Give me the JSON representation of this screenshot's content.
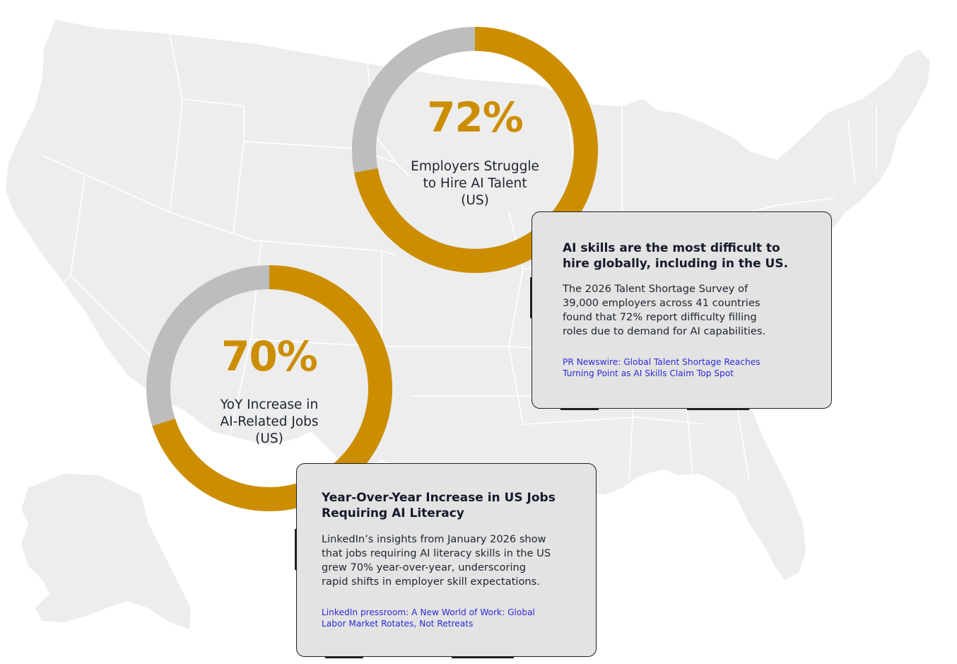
{
  "colors": {
    "accent": "#cc8e00",
    "ring_track": "#bdbdbd",
    "map_fill": "#ededed",
    "map_lines": "#ffffff",
    "card_bg": "#e3e3e3",
    "card_border": "#1f1f1f",
    "link": "#2b2bd6",
    "text_dark": "#141a2a"
  },
  "map": {
    "icon": "us-map-background"
  },
  "stats": [
    {
      "value": "72%",
      "fraction": 0.72,
      "label": "Employers Struggle\nto Hire AI Talent\n(US)"
    },
    {
      "value": "70%",
      "fraction": 0.7,
      "label": "YoY Increase in\nAI-Related Jobs\n(US)"
    }
  ],
  "cards": [
    {
      "title": "AI skills are the most difficult to\nhire globally, including in the US.",
      "body": "The 2026 Talent Shortage Survey of\n39,000 employers across 41 countries\nfound that 72% report difficulty filling\nroles due to demand for AI capabilities.",
      "link": "PR Newswire: Global Talent Shortage Reaches\nTurning Point as AI Skills Claim Top Spot"
    },
    {
      "title": "Year-Over-Year Increase in US Jobs\nRequiring AI Literacy",
      "body": "LinkedIn’s insights from January 2026 show\nthat jobs requiring AI literacy skills in the US\ngrew 70% year-over-year, underscoring\nrapid shifts in employer skill expectations.",
      "link": "LinkedIn pressroom: A New World of Work: Global\nLabor Market Rotates, Not Retreats"
    }
  ]
}
